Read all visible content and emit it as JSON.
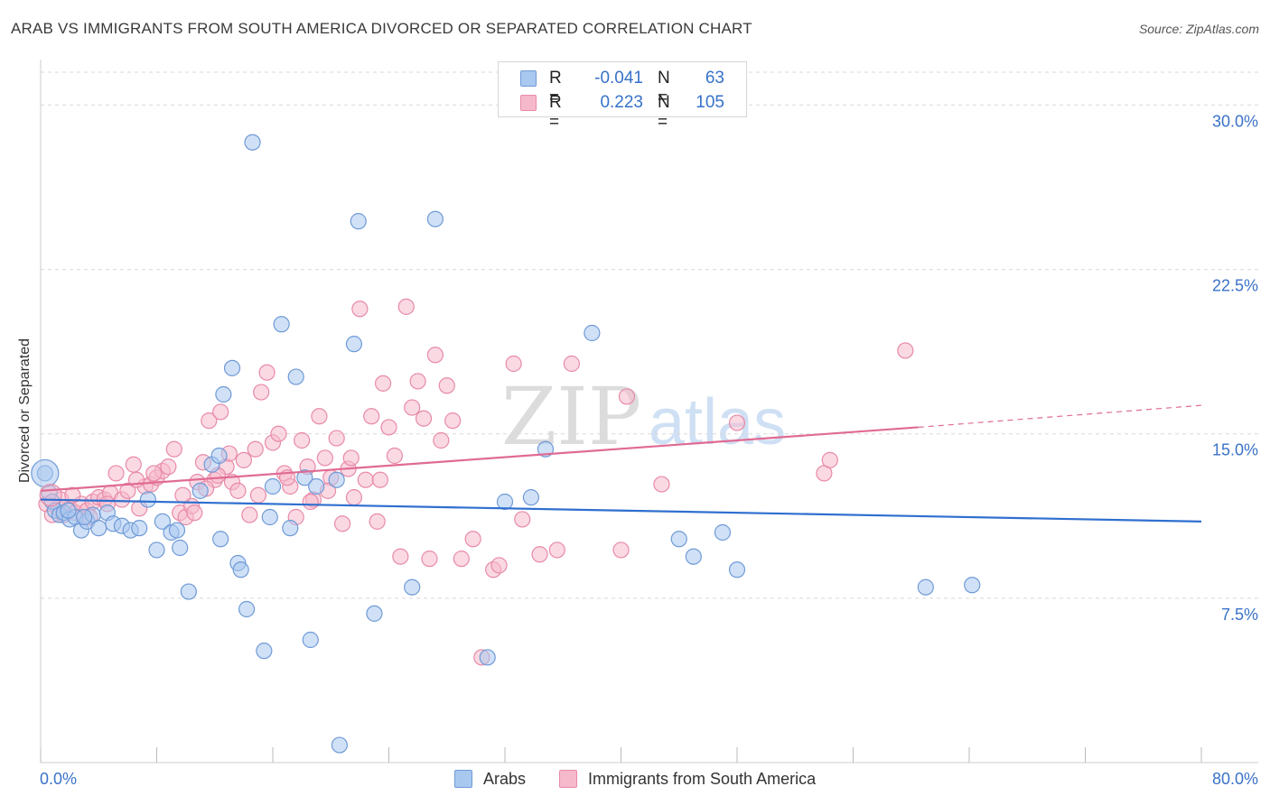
{
  "title": "ARAB VS IMMIGRANTS FROM SOUTH AMERICA DIVORCED OR SEPARATED CORRELATION CHART",
  "source": "Source: ZipAtlas.com",
  "watermark": {
    "zip": "ZIP",
    "atlas": "atlas"
  },
  "legend_top": {
    "rows": [
      {
        "r_label": "R =",
        "r_value": "-0.041",
        "n_label": "N =",
        "n_value": "63"
      },
      {
        "r_label": "R =",
        "r_value": "0.223",
        "n_label": "N =",
        "n_value": "105"
      }
    ]
  },
  "legend_bottom": {
    "items": [
      "Arabs",
      "Immigrants from South America"
    ]
  },
  "colors": {
    "blue_fill": "#a9c8f0",
    "blue_stroke": "#6f9ad6",
    "blue_line": "#2f6fcf",
    "pink_fill": "#f6b9cc",
    "pink_stroke": "#e88aa8",
    "pink_line": "#e06b93",
    "tick_label": "#3a72c8",
    "grid": "#d9d9d9"
  },
  "chart_data": {
    "type": "scatter",
    "title": "ARAB VS IMMIGRANTS FROM SOUTH AMERICA DIVORCED OR SEPARATED CORRELATION CHART",
    "xlabel": "",
    "ylabel": "Divorced or Separated",
    "xlim": [
      0,
      80
    ],
    "ylim": [
      0,
      31.5
    ],
    "x_tick_labels": [
      "0.0%",
      "80.0%"
    ],
    "y_ticks": [
      7.5,
      15.0,
      22.5,
      30.0
    ],
    "y_tick_labels": [
      "7.5%",
      "15.0%",
      "22.5%",
      "30.0%"
    ],
    "grid": true,
    "legend_placement": "top-center",
    "series": [
      {
        "name": "Arabs",
        "r": -0.041,
        "n": 63,
        "trend": [
          [
            0,
            12.0
          ],
          [
            80,
            11.0
          ]
        ],
        "points": [
          [
            0.3,
            13.2
          ],
          [
            0.6,
            12.3
          ],
          [
            0.8,
            11.9
          ],
          [
            1.0,
            11.5
          ],
          [
            1.3,
            11.3
          ],
          [
            1.6,
            11.4
          ],
          [
            2.0,
            11.1
          ],
          [
            2.4,
            11.2
          ],
          [
            2.8,
            10.6
          ],
          [
            3.2,
            11.0
          ],
          [
            3.6,
            11.3
          ],
          [
            4.0,
            10.7
          ],
          [
            4.6,
            11.4
          ],
          [
            5.0,
            10.9
          ],
          [
            5.6,
            10.8
          ],
          [
            6.2,
            10.6
          ],
          [
            6.8,
            10.7
          ],
          [
            7.4,
            12.0
          ],
          [
            8.0,
            9.7
          ],
          [
            8.4,
            11.0
          ],
          [
            9.0,
            10.5
          ],
          [
            9.6,
            9.8
          ],
          [
            10.2,
            7.8
          ],
          [
            11.0,
            12.4
          ],
          [
            11.8,
            13.6
          ],
          [
            12.3,
            14.0
          ],
          [
            12.4,
            10.2
          ],
          [
            12.6,
            16.8
          ],
          [
            13.2,
            18.0
          ],
          [
            13.6,
            9.1
          ],
          [
            13.8,
            8.8
          ],
          [
            14.2,
            7.0
          ],
          [
            14.6,
            28.3
          ],
          [
            15.4,
            5.1
          ],
          [
            16.0,
            12.6
          ],
          [
            15.8,
            11.2
          ],
          [
            16.6,
            20.0
          ],
          [
            17.2,
            10.7
          ],
          [
            17.6,
            17.6
          ],
          [
            18.2,
            13.0
          ],
          [
            18.6,
            5.6
          ],
          [
            19.0,
            12.6
          ],
          [
            20.4,
            12.9
          ],
          [
            20.6,
            0.8
          ],
          [
            21.6,
            19.1
          ],
          [
            21.9,
            24.7
          ],
          [
            23.0,
            6.8
          ],
          [
            25.6,
            8.0
          ],
          [
            27.2,
            24.8
          ],
          [
            30.8,
            4.8
          ],
          [
            32.0,
            11.9
          ],
          [
            33.8,
            12.1
          ],
          [
            34.8,
            14.3
          ],
          [
            38.0,
            19.6
          ],
          [
            44.0,
            10.2
          ],
          [
            45.0,
            9.4
          ],
          [
            47.0,
            10.5
          ],
          [
            48.0,
            8.8
          ],
          [
            61.0,
            8.0
          ],
          [
            64.2,
            8.1
          ],
          [
            1.9,
            11.5
          ],
          [
            3.0,
            11.2
          ],
          [
            9.4,
            10.6
          ]
        ]
      },
      {
        "name": "Immigrants from South America",
        "r": 0.223,
        "n": 105,
        "trend": [
          [
            0,
            12.4
          ],
          [
            60.5,
            15.3
          ]
        ],
        "trend_dashed": [
          [
            60.5,
            15.3
          ],
          [
            80,
            16.3
          ]
        ],
        "points": [
          [
            0.4,
            11.8
          ],
          [
            0.8,
            11.3
          ],
          [
            1.2,
            11.6
          ],
          [
            1.6,
            11.3
          ],
          [
            2.0,
            11.6
          ],
          [
            2.4,
            11.4
          ],
          [
            2.8,
            11.8
          ],
          [
            3.2,
            11.5
          ],
          [
            3.6,
            11.9
          ],
          [
            4.0,
            12.1
          ],
          [
            4.4,
            12.0
          ],
          [
            4.8,
            12.3
          ],
          [
            5.2,
            13.2
          ],
          [
            5.6,
            12.0
          ],
          [
            6.0,
            12.4
          ],
          [
            6.4,
            13.6
          ],
          [
            6.8,
            11.6
          ],
          [
            7.2,
            12.6
          ],
          [
            7.6,
            12.7
          ],
          [
            8.0,
            13.0
          ],
          [
            8.4,
            13.3
          ],
          [
            8.8,
            13.5
          ],
          [
            9.2,
            14.3
          ],
          [
            9.6,
            11.4
          ],
          [
            10.0,
            11.2
          ],
          [
            10.4,
            11.7
          ],
          [
            10.8,
            12.8
          ],
          [
            11.2,
            13.7
          ],
          [
            11.6,
            15.6
          ],
          [
            12.0,
            12.9
          ],
          [
            12.4,
            16.0
          ],
          [
            12.8,
            13.5
          ],
          [
            13.2,
            12.8
          ],
          [
            13.6,
            12.4
          ],
          [
            14.0,
            13.8
          ],
          [
            14.4,
            11.3
          ],
          [
            14.8,
            14.3
          ],
          [
            15.2,
            16.9
          ],
          [
            15.6,
            17.8
          ],
          [
            16.0,
            14.6
          ],
          [
            16.4,
            15.0
          ],
          [
            16.8,
            13.2
          ],
          [
            17.2,
            12.6
          ],
          [
            17.6,
            11.2
          ],
          [
            18.0,
            14.7
          ],
          [
            18.4,
            13.5
          ],
          [
            18.8,
            12.0
          ],
          [
            19.2,
            15.8
          ],
          [
            19.6,
            13.9
          ],
          [
            20.0,
            13.0
          ],
          [
            20.4,
            14.8
          ],
          [
            20.8,
            10.9
          ],
          [
            21.2,
            13.4
          ],
          [
            21.6,
            12.1
          ],
          [
            22.0,
            20.7
          ],
          [
            22.4,
            12.9
          ],
          [
            22.8,
            15.8
          ],
          [
            23.2,
            11.0
          ],
          [
            23.6,
            17.3
          ],
          [
            24.0,
            15.3
          ],
          [
            24.4,
            14.0
          ],
          [
            24.8,
            9.4
          ],
          [
            25.2,
            20.8
          ],
          [
            25.6,
            16.2
          ],
          [
            26.0,
            17.4
          ],
          [
            26.4,
            15.7
          ],
          [
            26.8,
            9.3
          ],
          [
            27.2,
            18.6
          ],
          [
            27.6,
            14.7
          ],
          [
            28.0,
            17.2
          ],
          [
            28.4,
            15.6
          ],
          [
            29.0,
            9.3
          ],
          [
            29.8,
            10.2
          ],
          [
            30.4,
            4.8
          ],
          [
            31.2,
            8.8
          ],
          [
            31.6,
            9.0
          ],
          [
            32.6,
            18.2
          ],
          [
            33.2,
            11.1
          ],
          [
            34.4,
            9.5
          ],
          [
            35.6,
            9.7
          ],
          [
            36.6,
            18.2
          ],
          [
            40.0,
            9.7
          ],
          [
            40.4,
            16.7
          ],
          [
            42.8,
            12.7
          ],
          [
            48.0,
            15.5
          ],
          [
            54.0,
            13.2
          ],
          [
            54.4,
            13.8
          ],
          [
            59.6,
            18.8
          ],
          [
            1.4,
            12.0
          ],
          [
            2.2,
            12.2
          ],
          [
            3.4,
            11.2
          ],
          [
            4.6,
            11.8
          ],
          [
            6.6,
            12.9
          ],
          [
            7.8,
            13.2
          ],
          [
            9.8,
            12.2
          ],
          [
            10.6,
            11.4
          ],
          [
            11.4,
            12.5
          ],
          [
            12.2,
            13.1
          ],
          [
            13.0,
            14.1
          ],
          [
            15.0,
            12.2
          ],
          [
            17.0,
            13.0
          ],
          [
            18.6,
            11.9
          ],
          [
            19.8,
            12.4
          ],
          [
            21.4,
            13.9
          ],
          [
            23.4,
            12.9
          ]
        ]
      }
    ]
  }
}
